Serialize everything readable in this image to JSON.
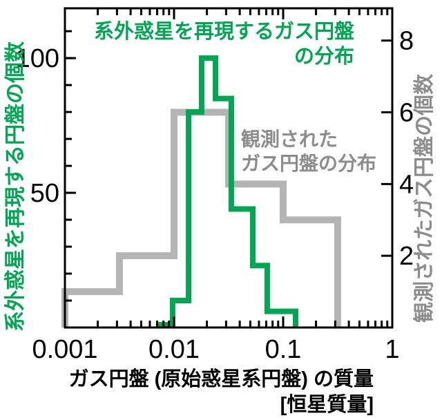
{
  "colors": {
    "green": "#00a651",
    "hist_gray": "#b4b4b4",
    "text_gray": "#8c8c8c",
    "axis_black": "#000000",
    "background": "#ffffff"
  },
  "annotations": {
    "green_title_line1": "系外惑星を再現するガス円盤",
    "green_title_line2": "の分布",
    "gray_title_line1": "観測された",
    "gray_title_line2": "ガス円盤の分布"
  },
  "axes": {
    "left_label": "系外惑星を再現する円盤の個数",
    "right_label": "観測されたガス円盤の個数",
    "x_label_line1": "ガス円盤 (原始惑星系円盤) の質量",
    "x_label_line2": "[恒星質量]"
  },
  "chart_data": {
    "type": "step-histogram",
    "title": "",
    "x_axis": {
      "scale": "log",
      "range": [
        0.001,
        1
      ],
      "unit": "恒星質量",
      "major_ticks": [
        {
          "value": 0.001,
          "label": "0.001"
        },
        {
          "value": 0.01,
          "label": "0.01"
        },
        {
          "value": 0.1,
          "label": "0.1"
        },
        {
          "value": 1,
          "label": "1"
        }
      ],
      "minor_tick_multiples": [
        2,
        3,
        4,
        5,
        6,
        7,
        8,
        9
      ]
    },
    "left_axis": {
      "label": "系外惑星を再現する円盤の個数",
      "range": [
        0,
        118.5
      ],
      "major_ticks": [
        {
          "value": 50,
          "label": "50"
        },
        {
          "value": 100,
          "label": "100"
        }
      ],
      "minor_tick_step": 10,
      "minor_tick_max": 110
    },
    "right_axis": {
      "label": "観測されたガス円盤の個数",
      "range": [
        0,
        8.9
      ],
      "major_ticks": [
        {
          "value": 2,
          "label": "2"
        },
        {
          "value": 4,
          "label": "4"
        },
        {
          "value": 6,
          "label": "6"
        },
        {
          "value": 8,
          "label": "8"
        }
      ]
    },
    "series": [
      {
        "id": "observed",
        "name": "観測されたガス円盤の分布",
        "axis": "right",
        "color": "#b4b4b4",
        "line_width": 10,
        "bin_edges": [
          0.001,
          0.00316,
          0.01,
          0.0316,
          0.1,
          0.316
        ],
        "counts": [
          1,
          2,
          6,
          4,
          3
        ]
      },
      {
        "id": "simulated",
        "name": "系外惑星を再現するガス円盤の分布",
        "axis": "left",
        "color": "#00a651",
        "line_width": 8,
        "bin_edges": [
          0.0074,
          0.0097,
          0.0136,
          0.0179,
          0.024,
          0.0335,
          0.0527,
          0.0715,
          0.13
        ],
        "counts": [
          1,
          10,
          80,
          100,
          85,
          44,
          23,
          6
        ]
      }
    ],
    "legend_position": "none",
    "grid": false
  }
}
